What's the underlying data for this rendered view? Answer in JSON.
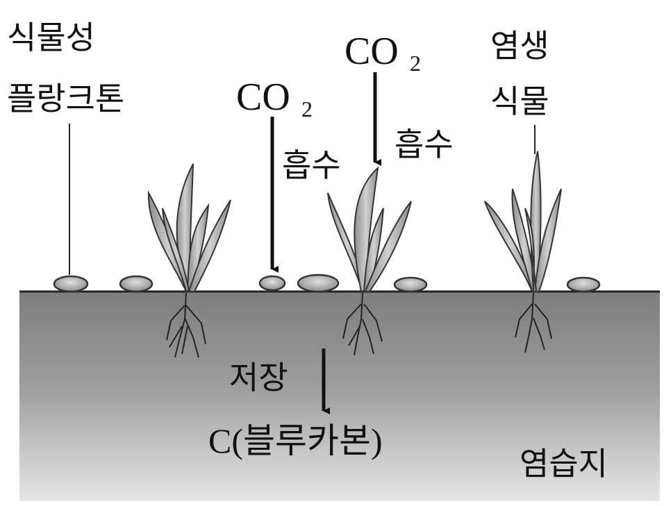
{
  "labels": {
    "phytoplankton_line1": "식물성",
    "phytoplankton_line2": "플랑크톤",
    "co2_left_main": "CO",
    "co2_left_sub": "2",
    "co2_right_main": "CO",
    "co2_right_sub": "2",
    "absorb_left": "흡수",
    "absorb_right": "흡수",
    "halophyte_line1": "염생",
    "halophyte_line2": "식물",
    "storage": "저장",
    "blue_carbon": "C(블루카본)",
    "salt_marsh": "염습지"
  }
}
